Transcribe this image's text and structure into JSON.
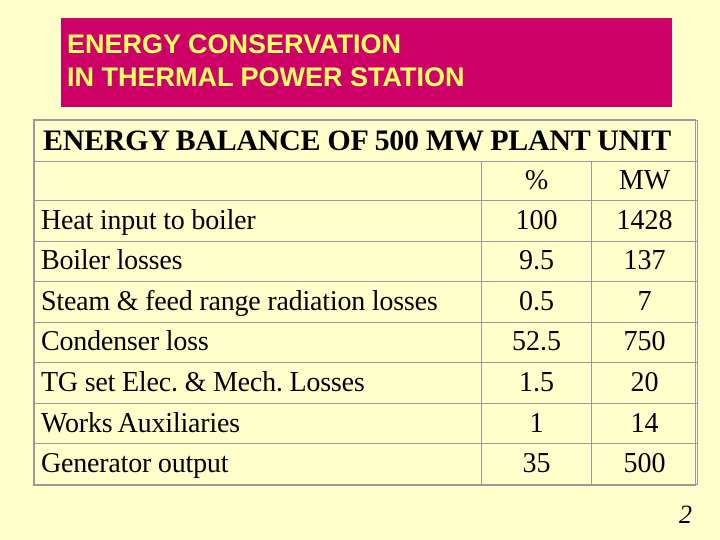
{
  "title": {
    "line1": "ENERGY CONSERVATION",
    "line2": "IN THERMAL POWER STATION"
  },
  "table": {
    "caption": "ENERGY BALANCE OF 500 MW PLANT UNIT",
    "header": {
      "label": "",
      "percent": "%",
      "mw": "MW"
    },
    "rows": [
      {
        "label": "Heat input to boiler",
        "percent": "100",
        "mw": "1428"
      },
      {
        "label": "Boiler losses",
        "percent": "9.5",
        "mw": "137"
      },
      {
        "label": "Steam & feed range radiation losses",
        "percent": "0.5",
        "mw": "7"
      },
      {
        "label": "Condenser loss",
        "percent": "52.5",
        "mw": "750"
      },
      {
        "label": "TG set Elec. & Mech. Losses",
        "percent": "1.5",
        "mw": "20"
      },
      {
        "label": "Works Auxiliaries",
        "percent": "1",
        "mw": "14"
      },
      {
        "label": "Generator output",
        "percent": "35",
        "mw": "500"
      }
    ]
  },
  "page_number": "2",
  "colors": {
    "background": "#ffffcc",
    "title_box": "#cc0066",
    "title_text": "#ffff66",
    "table_border": "#9a9a9a"
  }
}
